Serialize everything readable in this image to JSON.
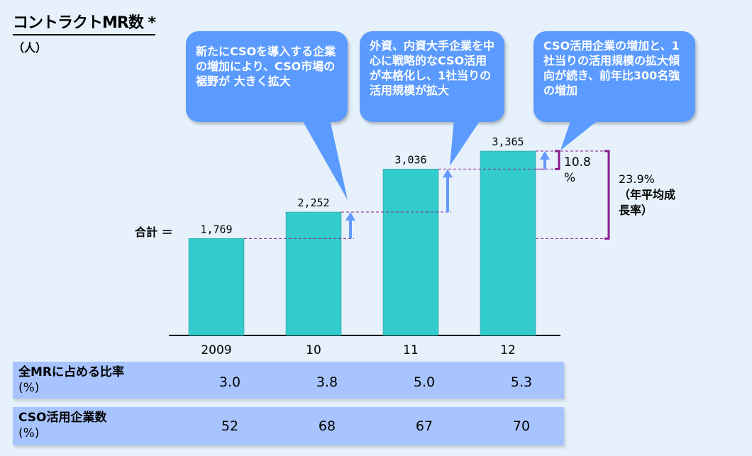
{
  "header": {
    "title": "コントラクトMR数 *",
    "unit": "（人）"
  },
  "bubbles": [
    {
      "text": "新たにCSOを導入する企業の増加により、CSO市場の裾野が 大きく拡大"
    },
    {
      "text": "外資、内資大手企業を中心に戦略的なCSO活用が本格化し、1社当りの活用規模が拡大"
    },
    {
      "text": "CSO活用企業の増加と、1社当りの活用規模の拡大傾向が続き、前年比300名強の増加"
    }
  ],
  "annotations": {
    "total_label": "合計 ＝",
    "yoy_value": "10.8",
    "yoy_unit": "%",
    "cagr_value": "23.9%",
    "cagr_label": "（年平均成長率）"
  },
  "colors": {
    "bar": "#33cccc",
    "bubble": "#5b9bff",
    "arrow": "#6699ff",
    "bracket": "#8b1a8b",
    "table": "#a8c4ff"
  },
  "chart_data": {
    "type": "bar",
    "categories": [
      "2009",
      "10",
      "11",
      "12"
    ],
    "values": [
      1769,
      2252,
      3036,
      3365
    ],
    "value_labels": [
      "1,769",
      "2,252",
      "3,036",
      "3,365"
    ],
    "title": "コントラクトMR数 *",
    "ylabel": "（人）",
    "ylim": [
      0,
      3365
    ]
  },
  "table": {
    "rows": [
      {
        "label": "全MRに占める比率",
        "unit": "(%)",
        "values": [
          "3.0",
          "3.8",
          "5.0",
          "5.3"
        ]
      },
      {
        "label": "CSO活用企業数",
        "unit": "(%)",
        "values": [
          "52",
          "68",
          "67",
          "70"
        ]
      }
    ]
  }
}
